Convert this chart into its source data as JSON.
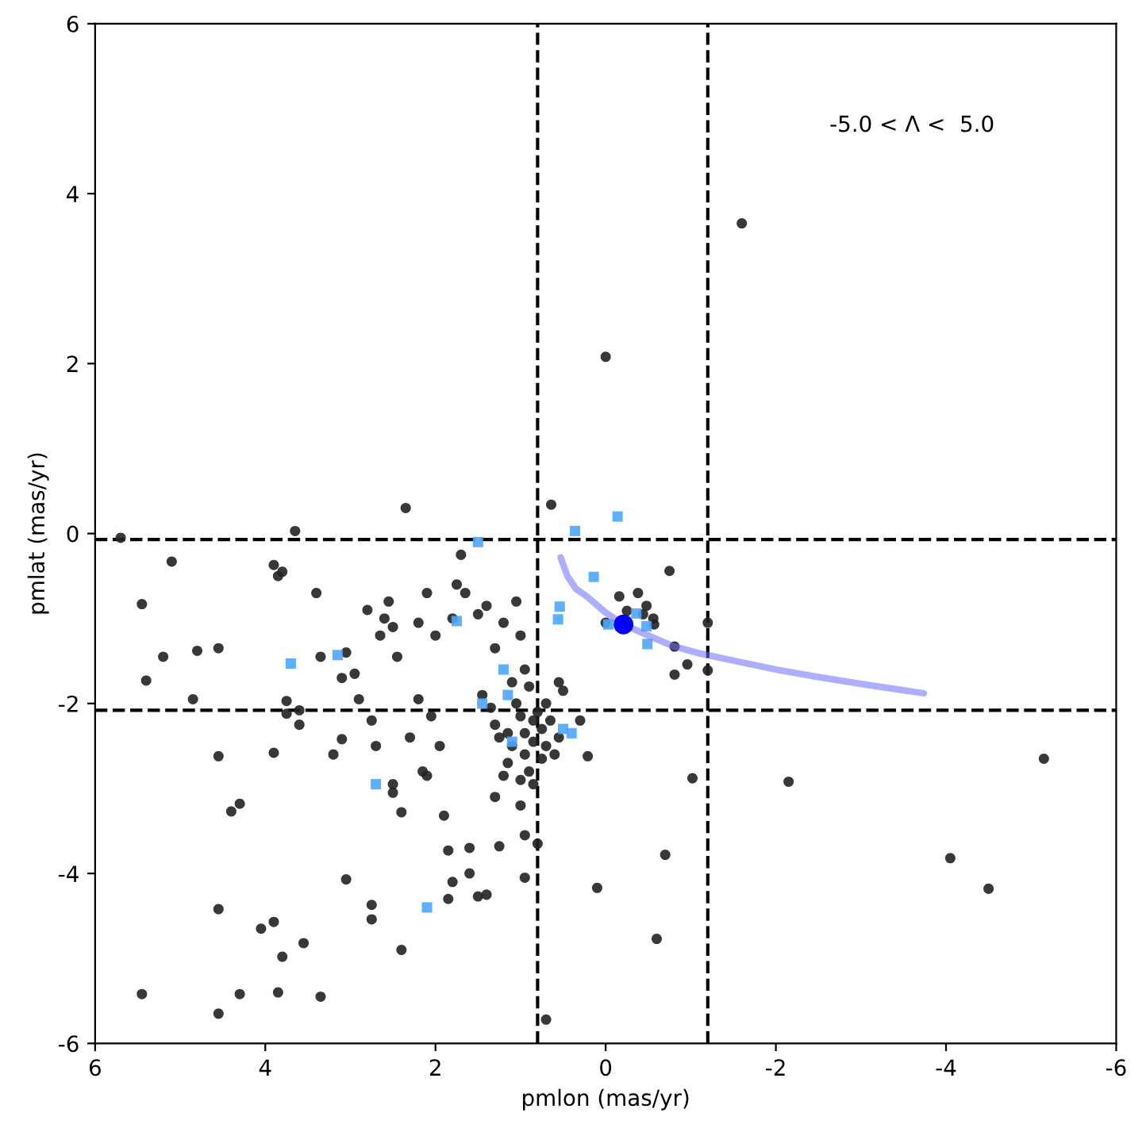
{
  "chart_data": {
    "type": "scatter",
    "xlabel": "pmlon (mas/yr)",
    "ylabel": "pmlat (mas/yr)",
    "xlim": [
      6,
      -6
    ],
    "ylim": [
      -6,
      6
    ],
    "xticks": [
      6,
      4,
      2,
      0,
      -2,
      -4,
      -6
    ],
    "yticks": [
      -6,
      -4,
      -2,
      0,
      2,
      4,
      6
    ],
    "grid": false,
    "legend": false,
    "annotations": [
      {
        "text": "-5.0 < Λ <  5.0"
      }
    ],
    "ref_lines": [
      {
        "axis": "x",
        "value": 0.8,
        "line_style": "dashed",
        "color": "#000000"
      },
      {
        "axis": "x",
        "value": -1.2,
        "line_style": "dashed",
        "color": "#000000"
      },
      {
        "axis": "y",
        "value": -0.07,
        "line_style": "dashed",
        "color": "#000000"
      },
      {
        "axis": "y",
        "value": -2.08,
        "line_style": "dashed",
        "color": "#000000"
      }
    ],
    "series": [
      {
        "marker": "circle",
        "color": "#222222",
        "x": [
          5.7,
          5.45,
          5.4,
          5.2,
          5.1,
          4.85,
          4.8,
          4.55,
          4.55,
          4.4,
          4.3,
          4.55,
          4.55,
          4.3,
          5.45,
          4.05,
          3.9,
          3.85,
          3.8,
          3.55,
          3.35,
          3.9,
          3.85,
          3.8,
          3.65,
          3.4,
          3.9,
          3.75,
          3.75,
          3.6,
          3.6,
          3.35,
          3.2,
          3.1,
          3.05,
          2.75,
          2.75,
          2.4,
          3.1,
          3.05,
          2.95,
          2.9,
          2.8,
          2.65,
          2.6,
          2.55,
          2.5,
          2.45,
          2.35,
          2.2,
          2.1,
          2.0,
          1.8,
          1.75,
          1.7,
          1.65,
          1.5,
          1.4,
          1.3,
          1.2,
          1.05,
          1.0,
          0.95,
          0.9,
          2.75,
          2.7,
          2.5,
          2.5,
          2.4,
          2.3,
          2.2,
          2.15,
          2.1,
          2.05,
          1.95,
          1.9,
          1.85,
          1.8,
          1.85,
          1.6,
          1.6,
          1.5,
          1.4,
          1.3,
          1.25,
          1.15,
          1.0,
          0.95,
          0.95,
          0.8,
          0.7,
          0.1,
          0.0,
          -1.6,
          0.64,
          1.45,
          1.35,
          1.3,
          1.25,
          1.15,
          1.1,
          1.1,
          1.05,
          1.0,
          0.95,
          0.95,
          0.9,
          0.85,
          0.85,
          0.8,
          0.75,
          0.7,
          0.7,
          0.65,
          0.6,
          0.55,
          null,
          1.0,
          0.85,
          1.2,
          0.75,
          0.3,
          0.21,
          0.55,
          0.5,
          -0.16,
          -0.38,
          -0.48,
          -0.25,
          -0.44,
          -0.56,
          0.0,
          -0.57,
          -0.75,
          -1.2,
          -0.81,
          -0.96,
          -0.81,
          -1.2,
          -1.02,
          -2.15,
          -5.15,
          -4.05,
          -4.5,
          -0.7,
          -0.6
        ],
        "values": [
          -0.05,
          -0.83,
          -1.73,
          -1.45,
          -0.33,
          -1.95,
          -1.38,
          -1.35,
          -2.62,
          -3.27,
          -3.18,
          -4.42,
          -5.65,
          -5.42,
          -5.42,
          -4.65,
          -4.57,
          -5.4,
          -4.98,
          -4.82,
          -5.45,
          -0.37,
          -0.5,
          -0.45,
          0.03,
          -0.7,
          -2.58,
          -1.97,
          -2.12,
          -2.25,
          -2.08,
          -1.45,
          -2.6,
          -2.42,
          -4.07,
          -4.37,
          -4.54,
          -4.9,
          -1.7,
          -1.4,
          -1.65,
          -1.95,
          -0.9,
          -1.2,
          -1.0,
          -0.8,
          -1.1,
          -1.45,
          0.3,
          -1.05,
          -0.7,
          -1.2,
          -1.0,
          -0.6,
          -0.25,
          -0.7,
          -0.95,
          -0.85,
          -1.35,
          -1.05,
          -0.8,
          -1.2,
          -1.6,
          -1.8,
          -2.2,
          -2.5,
          -2.95,
          -3.05,
          -3.28,
          -2.4,
          -1.95,
          -2.8,
          -2.85,
          -2.15,
          -2.5,
          -3.32,
          -3.73,
          -4.1,
          -4.3,
          -3.7,
          -4.0,
          -4.27,
          -4.25,
          -3.1,
          -3.68,
          -2.7,
          -3.2,
          -3.55,
          -4.05,
          -3.65,
          -5.72,
          -4.17,
          2.08,
          3.65,
          0.34,
          -1.9,
          -2.05,
          -2.25,
          -2.4,
          -2.35,
          -2.5,
          -1.75,
          -2.0,
          -2.15,
          -2.35,
          -2.6,
          -2.8,
          -2.2,
          -2.45,
          -2.1,
          -2.3,
          -2.5,
          -2.0,
          -2.2,
          -2.6,
          -2.4,
          null,
          -2.9,
          -2.95,
          -2.85,
          -2.65,
          -2.2,
          -2.62,
          -1.75,
          -1.85,
          -0.74,
          -0.7,
          -0.85,
          -0.91,
          -0.95,
          -1.0,
          -1.05,
          -1.07,
          -0.44,
          -1.05,
          -1.33,
          -1.54,
          -1.66,
          -1.61,
          -2.88,
          -2.92,
          -2.65,
          -3.82,
          -4.18,
          -3.78,
          -4.77
        ]
      },
      {
        "marker": "square",
        "color": "#4da6ff",
        "x": [
          3.7,
          3.15,
          1.75,
          1.5,
          1.45,
          1.2,
          1.15,
          1.1,
          2.7,
          2.1,
          0.36,
          -0.14,
          0.14,
          0.54,
          0.56,
          -0.03,
          -0.36,
          -0.48,
          -0.49,
          0.5,
          0.4
        ],
        "values": [
          -1.53,
          -1.43,
          -1.03,
          -0.1,
          -2.0,
          -1.6,
          -1.9,
          -2.45,
          -2.95,
          -4.4,
          0.03,
          0.2,
          -0.51,
          -0.86,
          -1.01,
          -1.07,
          -0.94,
          -1.09,
          -1.3,
          -2.3,
          -2.35
        ]
      },
      {
        "type": "line",
        "marker": "none",
        "color": "#6b6bff",
        "x": [
          0.53,
          0.45,
          0.35,
          0.21,
          0.0,
          -0.21,
          -0.5,
          -0.78,
          -1.1,
          -1.52,
          -2.0,
          -2.45,
          -3.0,
          -3.4,
          -3.74
        ],
        "values": [
          -0.28,
          -0.5,
          -0.65,
          -0.75,
          -0.93,
          -1.07,
          -1.2,
          -1.32,
          -1.41,
          -1.5,
          -1.6,
          -1.68,
          -1.77,
          -1.83,
          -1.88
        ]
      },
      {
        "marker": "circle",
        "color": "#0000ff",
        "x": [
          -0.21
        ],
        "values": [
          -1.07
        ]
      }
    ]
  }
}
